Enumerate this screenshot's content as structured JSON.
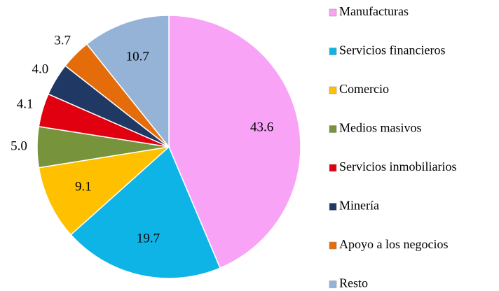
{
  "chart_data": {
    "type": "pie",
    "categories": [
      "Manufacturas",
      "Servicios financieros",
      "Comercio",
      "Medios masivos",
      "Servicios inmobiliarios",
      "Minería",
      "Apoyo a los negocios",
      "Resto"
    ],
    "values": [
      43.6,
      19.7,
      9.1,
      5.0,
      4.1,
      4.0,
      3.7,
      10.7
    ],
    "value_labels": [
      "43.6",
      "19.7",
      "9.1",
      "5.0",
      "4.1",
      "4.0",
      "3.7",
      "10.7"
    ],
    "colors": [
      "#f9a3f7",
      "#0fb4e6",
      "#ffc000",
      "#77933c",
      "#e00010",
      "#1f3864",
      "#e46c0a",
      "#95b3d7"
    ],
    "legend": "right"
  }
}
